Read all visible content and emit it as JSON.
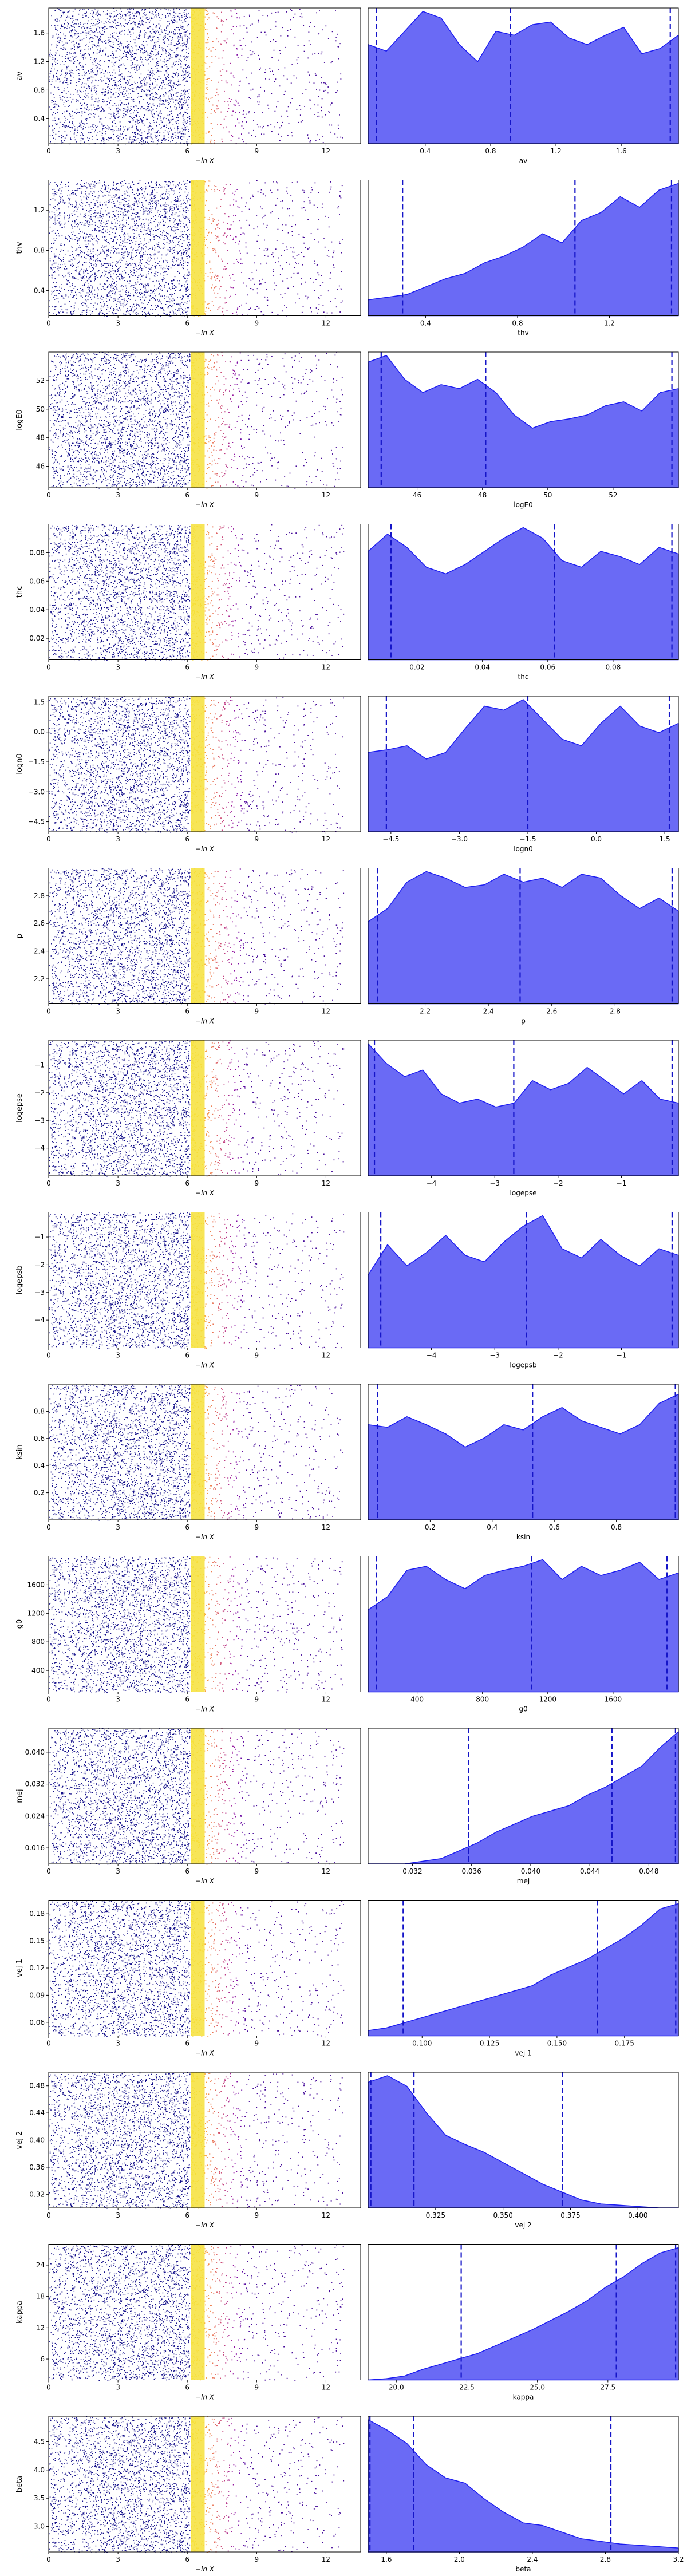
{
  "figure": {
    "xaxis_label": "−ln X"
  },
  "chart_data": [
    {
      "type": "scatter",
      "param": "av",
      "trace_xticks": [
        0,
        3,
        6,
        9,
        12
      ],
      "trace_yticks": [
        0.4,
        0.8,
        1.2,
        1.6
      ],
      "ylim": [
        0.05,
        1.95
      ],
      "xlim": [
        0,
        13.5
      ],
      "post_xticks": [
        0.4,
        0.8,
        1.2,
        1.6
      ],
      "post_xlim": [
        0.05,
        1.95
      ],
      "quantiles": [
        0.1,
        0.92,
        1.9
      ],
      "density": [
        0.75,
        0.7,
        0.85,
        1.0,
        0.95,
        0.75,
        0.62,
        0.85,
        0.82,
        0.9,
        0.92,
        0.8,
        0.75,
        0.82,
        0.88,
        0.68,
        0.72,
        0.82
      ],
      "density_max": 1.0
    },
    {
      "type": "scatter",
      "param": "thv",
      "trace_xticks": [
        0,
        3,
        6,
        9,
        12
      ],
      "trace_yticks": [
        0.4,
        0.8,
        1.2
      ],
      "ylim": [
        0.15,
        1.5
      ],
      "xlim": [
        0,
        13.5
      ],
      "post_xticks": [
        0.4,
        0.8,
        1.2
      ],
      "post_xlim": [
        0.15,
        1.5
      ],
      "quantiles": [
        0.3,
        1.05,
        1.47
      ],
      "density": [
        0.12,
        0.14,
        0.16,
        0.22,
        0.28,
        0.32,
        0.4,
        0.45,
        0.52,
        0.62,
        0.55,
        0.72,
        0.78,
        0.9,
        0.82,
        0.95,
        1.0
      ],
      "density_max": 1.0
    },
    {
      "type": "scatter",
      "param": "logE0",
      "trace_xticks": [
        0,
        3,
        6,
        9,
        12
      ],
      "trace_yticks": [
        46,
        48,
        50,
        52
      ],
      "ylim": [
        44.5,
        54.0
      ],
      "xlim": [
        0,
        13.5
      ],
      "post_xticks": [
        46,
        48,
        50,
        52
      ],
      "post_xlim": [
        44.5,
        54.0
      ],
      "quantiles": [
        44.9,
        48.1,
        53.8
      ],
      "density": [
        0.95,
        1.0,
        0.82,
        0.72,
        0.78,
        0.75,
        0.82,
        0.72,
        0.55,
        0.45,
        0.5,
        0.52,
        0.55,
        0.62,
        0.65,
        0.58,
        0.72,
        0.75
      ],
      "density_max": 1.0
    },
    {
      "type": "scatter",
      "param": "thc",
      "trace_xticks": [
        0,
        3,
        6,
        9,
        12
      ],
      "trace_yticks": [
        0.02,
        0.04,
        0.06,
        0.08
      ],
      "ylim": [
        0.005,
        0.1
      ],
      "xlim": [
        0,
        13.5
      ],
      "post_xticks": [
        0.02,
        0.04,
        0.06,
        0.08
      ],
      "post_xlim": [
        0.005,
        0.1
      ],
      "quantiles": [
        0.012,
        0.062,
        0.098
      ],
      "density": [
        0.82,
        0.95,
        0.85,
        0.7,
        0.65,
        0.72,
        0.82,
        0.92,
        1.0,
        0.92,
        0.75,
        0.7,
        0.82,
        0.78,
        0.72,
        0.85,
        0.8
      ],
      "density_max": 1.0
    },
    {
      "type": "scatter",
      "param": "logn0",
      "trace_xticks": [
        0,
        3,
        6,
        9,
        12
      ],
      "trace_yticks": [
        -4.5,
        -3.0,
        -1.5,
        0.0,
        1.5
      ],
      "ylim": [
        -5.0,
        1.8
      ],
      "xlim": [
        0,
        13.5
      ],
      "post_xticks": [
        -4.5,
        -3.0,
        -1.5,
        0.0,
        1.5
      ],
      "post_xlim": [
        -5.0,
        1.8
      ],
      "quantiles": [
        -4.6,
        -1.5,
        1.6
      ],
      "density": [
        0.6,
        0.62,
        0.65,
        0.55,
        0.6,
        0.78,
        0.95,
        0.92,
        1.0,
        0.85,
        0.7,
        0.65,
        0.82,
        0.95,
        0.8,
        0.75,
        0.82
      ],
      "density_max": 1.0
    },
    {
      "type": "scatter",
      "param": "p",
      "trace_xticks": [
        0,
        3,
        6,
        9,
        12
      ],
      "trace_yticks": [
        2.2,
        2.4,
        2.6,
        2.8
      ],
      "ylim": [
        2.02,
        3.0
      ],
      "xlim": [
        0,
        13.5
      ],
      "post_xticks": [
        2.2,
        2.4,
        2.6,
        2.8
      ],
      "post_xlim": [
        2.02,
        3.0
      ],
      "quantiles": [
        2.05,
        2.5,
        2.98
      ],
      "density": [
        0.62,
        0.72,
        0.92,
        1.0,
        0.95,
        0.88,
        0.9,
        0.98,
        0.92,
        0.95,
        0.88,
        0.98,
        0.95,
        0.82,
        0.72,
        0.8,
        0.7
      ],
      "density_max": 1.0
    },
    {
      "type": "scatter",
      "param": "logepse",
      "trace_xticks": [
        0,
        3,
        6,
        9,
        12
      ],
      "trace_yticks": [
        -4,
        -3,
        -2,
        -1
      ],
      "ylim": [
        -5.0,
        -0.1
      ],
      "xlim": [
        0,
        13.5
      ],
      "post_xticks": [
        -4,
        -3,
        -2,
        -1
      ],
      "post_xlim": [
        -5.0,
        -0.1
      ],
      "quantiles": [
        -4.9,
        -2.7,
        -0.2
      ],
      "density": [
        1.0,
        0.85,
        0.75,
        0.8,
        0.62,
        0.55,
        0.58,
        0.52,
        0.55,
        0.72,
        0.65,
        0.7,
        0.82,
        0.72,
        0.62,
        0.72,
        0.58,
        0.55
      ],
      "density_max": 1.0
    },
    {
      "type": "scatter",
      "param": "logepsb",
      "trace_xticks": [
        0,
        3,
        6,
        9,
        12
      ],
      "trace_yticks": [
        -4,
        -3,
        -2,
        -1
      ],
      "ylim": [
        -5.0,
        -0.1
      ],
      "xlim": [
        0,
        13.5
      ],
      "post_xticks": [
        -4,
        -3,
        -2,
        -1
      ],
      "post_xlim": [
        -5.0,
        -0.1
      ],
      "quantiles": [
        -4.8,
        -2.5,
        -0.2
      ],
      "density": [
        0.55,
        0.78,
        0.62,
        0.72,
        0.85,
        0.7,
        0.65,
        0.8,
        0.92,
        1.0,
        0.75,
        0.68,
        0.82,
        0.7,
        0.62,
        0.75,
        0.7
      ],
      "density_max": 1.0
    },
    {
      "type": "scatter",
      "param": "ksin",
      "trace_xticks": [
        0,
        3,
        6,
        9,
        12
      ],
      "trace_yticks": [
        0.2,
        0.4,
        0.6,
        0.8
      ],
      "ylim": [
        0.0,
        1.0
      ],
      "xlim": [
        0,
        13.5
      ],
      "post_xticks": [
        0.2,
        0.4,
        0.6,
        0.8
      ],
      "post_xlim": [
        0.0,
        1.0
      ],
      "quantiles": [
        0.03,
        0.53,
        0.99
      ],
      "density": [
        0.72,
        0.7,
        0.78,
        0.72,
        0.65,
        0.55,
        0.62,
        0.72,
        0.68,
        0.78,
        0.85,
        0.75,
        0.7,
        0.65,
        0.72,
        0.88,
        0.95
      ],
      "density_max": 1.0
    },
    {
      "type": "scatter",
      "param": "g0",
      "trace_xticks": [
        0,
        3,
        6,
        9,
        12
      ],
      "trace_yticks": [
        400,
        800,
        1200,
        1600
      ],
      "ylim": [
        100,
        2000
      ],
      "xlim": [
        0,
        13.5
      ],
      "post_xticks": [
        400,
        800,
        1200,
        1600
      ],
      "post_xlim": [
        100,
        2000
      ],
      "quantiles": [
        150,
        1100,
        1930
      ],
      "density": [
        0.62,
        0.72,
        0.92,
        0.95,
        0.85,
        0.78,
        0.88,
        0.92,
        0.95,
        1.0,
        0.85,
        0.95,
        0.88,
        0.92,
        0.98,
        0.85,
        0.9
      ],
      "density_max": 1.0
    },
    {
      "type": "scatter",
      "param": "mej",
      "trace_xticks": [
        0,
        3,
        6,
        9,
        12
      ],
      "trace_yticks": [
        0.016,
        0.024,
        0.032,
        0.04
      ],
      "ylim": [
        0.012,
        0.046
      ],
      "xlim": [
        0,
        13.5
      ],
      "post_xticks": [
        0.032,
        0.036,
        0.04,
        0.044,
        0.048
      ],
      "post_xlim": [
        0.029,
        0.05
      ],
      "quantiles": [
        0.0358,
        0.0455,
        0.0498
      ],
      "density": [
        0.0,
        0.0,
        0.0,
        0.02,
        0.04,
        0.1,
        0.16,
        0.24,
        0.3,
        0.36,
        0.4,
        0.44,
        0.52,
        0.58,
        0.66,
        0.74,
        0.88,
        1.0
      ],
      "density_max": 1.0
    },
    {
      "type": "scatter",
      "param": "vej 1",
      "trace_xticks": [
        0,
        3,
        6,
        9,
        12
      ],
      "trace_yticks": [
        0.06,
        0.09,
        0.12,
        0.15,
        0.18
      ],
      "ylim": [
        0.045,
        0.195
      ],
      "xlim": [
        0,
        13.5
      ],
      "post_xticks": [
        0.1,
        0.125,
        0.15,
        0.175
      ],
      "post_xlim": [
        0.08,
        0.195
      ],
      "quantiles": [
        0.093,
        0.165,
        0.194
      ],
      "density": [
        0.04,
        0.06,
        0.1,
        0.14,
        0.18,
        0.22,
        0.26,
        0.3,
        0.34,
        0.38,
        0.46,
        0.52,
        0.58,
        0.66,
        0.74,
        0.84,
        0.96,
        1.0
      ],
      "density_max": 1.0
    },
    {
      "type": "scatter",
      "param": "vej 2",
      "trace_xticks": [
        0,
        3,
        6,
        9,
        12
      ],
      "trace_yticks": [
        0.32,
        0.36,
        0.4,
        0.44,
        0.48
      ],
      "ylim": [
        0.3,
        0.5
      ],
      "xlim": [
        0,
        13.5
      ],
      "post_xticks": [
        0.325,
        0.35,
        0.375,
        0.4
      ],
      "post_xlim": [
        0.3,
        0.415
      ],
      "quantiles": [
        0.301,
        0.317,
        0.372
      ],
      "density": [
        0.95,
        1.0,
        0.92,
        0.72,
        0.55,
        0.48,
        0.42,
        0.34,
        0.26,
        0.18,
        0.12,
        0.06,
        0.03,
        0.02,
        0.01,
        0.0,
        0.0
      ],
      "density_max": 1.0
    },
    {
      "type": "scatter",
      "param": "kappa",
      "trace_xticks": [
        0,
        3,
        6,
        9,
        12
      ],
      "trace_yticks": [
        6,
        12,
        18,
        24
      ],
      "ylim": [
        2.0,
        28.0
      ],
      "xlim": [
        0,
        13.5
      ],
      "post_xticks": [
        20.0,
        22.5,
        25.0,
        27.5
      ],
      "post_xlim": [
        19.0,
        30.0
      ],
      "quantiles": [
        22.3,
        27.8,
        29.9
      ],
      "density": [
        0.0,
        0.01,
        0.03,
        0.08,
        0.12,
        0.16,
        0.2,
        0.26,
        0.32,
        0.38,
        0.45,
        0.52,
        0.6,
        0.7,
        0.78,
        0.88,
        0.96,
        1.0
      ],
      "density_max": 1.0
    },
    {
      "type": "scatter",
      "param": "beta",
      "trace_xticks": [
        0,
        3,
        6,
        9,
        12
      ],
      "trace_yticks": [
        3.0,
        3.5,
        4.0,
        4.5
      ],
      "ylim": [
        2.55,
        4.95
      ],
      "xlim": [
        0,
        13.5
      ],
      "post_xticks": [
        1.6,
        2.0,
        2.4,
        2.8,
        3.2
      ],
      "post_xlim": [
        1.5,
        3.2
      ],
      "quantiles": [
        1.51,
        1.75,
        2.83
      ],
      "density": [
        1.0,
        0.92,
        0.82,
        0.66,
        0.56,
        0.52,
        0.4,
        0.3,
        0.22,
        0.2,
        0.15,
        0.1,
        0.08,
        0.06,
        0.05,
        0.04,
        0.03
      ],
      "density_max": 1.0
    }
  ],
  "colors": {
    "trace_cold": "#14108a",
    "trace_hot": "#f6e13a",
    "kde_fill": "#6a6af5",
    "kde_edge": "#1b1bf0",
    "quantile": "#1515c8"
  }
}
